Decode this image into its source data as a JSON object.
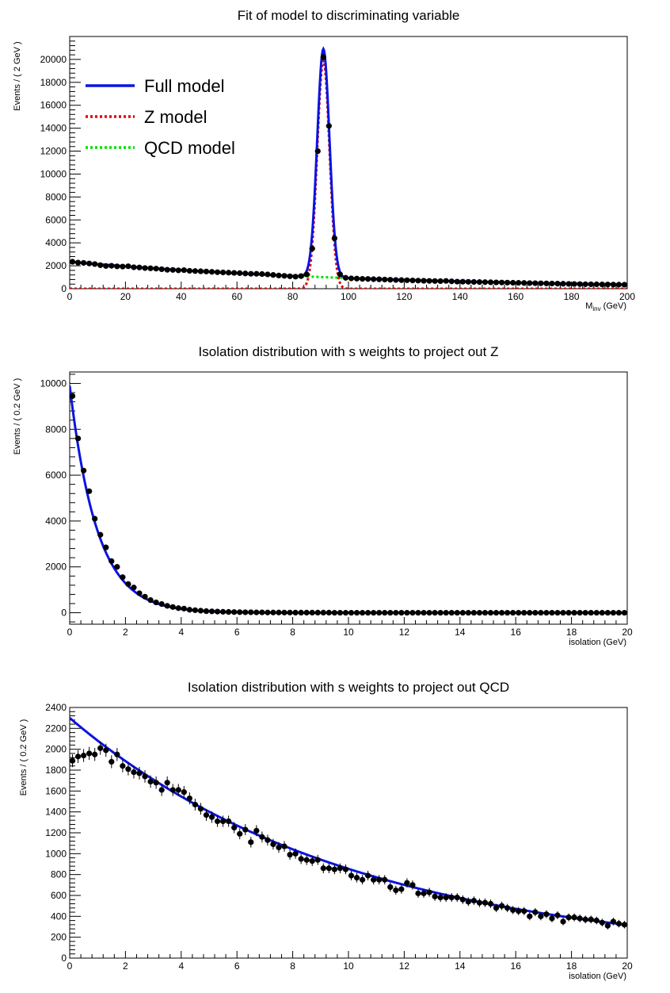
{
  "colors": {
    "full_model": "#0b14e0",
    "z_model": "#e00000",
    "qcd_model": "#00e000",
    "points": "#000000",
    "frame": "#000000"
  },
  "chart_data": [
    {
      "type": "scatter",
      "title": "Fit of model to discriminating variable",
      "xlabel": "M",
      "xlabel_sub": "inv",
      "xlabel_unit": " (GeV)",
      "ylabel": "Events / ( 2 GeV )",
      "xlim": [
        0,
        200
      ],
      "ylim": [
        0,
        22000
      ],
      "xticks": [
        0,
        20,
        40,
        60,
        80,
        100,
        120,
        140,
        160,
        180,
        200
      ],
      "yticks": [
        0,
        2000,
        4000,
        6000,
        8000,
        10000,
        12000,
        14000,
        16000,
        18000,
        20000
      ],
      "legend": {
        "position": "top-left",
        "entries": [
          {
            "label": "Full model",
            "style": "solid",
            "color": "#0b14e0"
          },
          {
            "label": "Z model",
            "style": "dotted",
            "color": "#e00000"
          },
          {
            "label": "QCD model",
            "style": "dotted",
            "color": "#00e000"
          }
        ]
      },
      "series": [
        {
          "name": "Data",
          "kind": "points",
          "x": [
            1,
            3,
            5,
            7,
            9,
            11,
            13,
            15,
            17,
            19,
            21,
            23,
            25,
            27,
            29,
            31,
            33,
            35,
            37,
            39,
            41,
            43,
            45,
            47,
            49,
            51,
            53,
            55,
            57,
            59,
            61,
            63,
            65,
            67,
            69,
            71,
            73,
            75,
            77,
            79,
            81,
            83,
            85,
            87,
            89,
            91,
            93,
            95,
            97,
            99,
            101,
            103,
            105,
            107,
            109,
            111,
            113,
            115,
            117,
            119,
            121,
            123,
            125,
            127,
            129,
            131,
            133,
            135,
            137,
            139,
            141,
            143,
            145,
            147,
            149,
            151,
            153,
            155,
            157,
            159,
            161,
            163,
            165,
            167,
            169,
            171,
            173,
            175,
            177,
            179,
            181,
            183,
            185,
            187,
            189,
            191,
            193,
            195,
            197,
            199
          ],
          "y": [
            2350,
            2280,
            2250,
            2200,
            2150,
            2050,
            1980,
            2000,
            1950,
            1930,
            1960,
            1870,
            1850,
            1800,
            1780,
            1750,
            1700,
            1650,
            1640,
            1600,
            1620,
            1560,
            1540,
            1520,
            1500,
            1470,
            1440,
            1420,
            1400,
            1380,
            1360,
            1330,
            1300,
            1300,
            1280,
            1250,
            1200,
            1150,
            1120,
            1080,
            1050,
            1100,
            1250,
            3500,
            12000,
            20200,
            14200,
            4400,
            1250,
            950,
            900,
            880,
            860,
            850,
            830,
            820,
            800,
            780,
            760,
            750,
            740,
            720,
            700,
            690,
            680,
            670,
            660,
            680,
            640,
            620,
            610,
            600,
            590,
            580,
            570,
            560,
            550,
            540,
            530,
            520,
            510,
            500,
            490,
            480,
            470,
            460,
            450,
            440,
            430,
            420,
            410,
            400,
            390,
            385,
            380,
            370,
            365,
            360,
            355,
            350
          ]
        },
        {
          "name": "Full model",
          "kind": "function",
          "model": "full",
          "params": {
            "bkg_a": 2350,
            "bkg_b": 0.0093,
            "peak_amp": 19900,
            "peak_mu": 91.0,
            "peak_sigma": 2.2
          }
        },
        {
          "name": "Z model",
          "kind": "function",
          "model": "z",
          "params": {
            "peak_amp": 19900,
            "peak_mu": 91.0,
            "peak_sigma": 2.2
          }
        },
        {
          "name": "QCD model",
          "kind": "function",
          "model": "qcd",
          "params": {
            "bkg_a": 2350,
            "bkg_b": 0.0093
          }
        }
      ]
    },
    {
      "type": "scatter",
      "title": "Isolation distribution with s weights to project out Z",
      "xlabel": "isolation (GeV)",
      "ylabel": "Events / ( 0.2 GeV )",
      "xlim": [
        0,
        20
      ],
      "ylim": [
        -500,
        10500
      ],
      "xticks": [
        0,
        2,
        4,
        6,
        8,
        10,
        12,
        14,
        16,
        18,
        20
      ],
      "yticks": [
        0,
        2000,
        4000,
        6000,
        8000,
        10000
      ],
      "series": [
        {
          "name": "Data",
          "kind": "points",
          "x": [
            0.1,
            0.3,
            0.5,
            0.7,
            0.9,
            1.1,
            1.3,
            1.5,
            1.7,
            1.9,
            2.1,
            2.3,
            2.5,
            2.7,
            2.9,
            3.1,
            3.3,
            3.5,
            3.7,
            3.9,
            4.1,
            4.3,
            4.5,
            4.7,
            4.9,
            5.1,
            5.3,
            5.5,
            5.7,
            5.9,
            6.1,
            6.3,
            6.5,
            6.7,
            6.9,
            7.1,
            7.3,
            7.5,
            7.7,
            7.9,
            8.1,
            8.3,
            8.5,
            8.7,
            8.9,
            9.1,
            9.3,
            9.5,
            9.7,
            9.9,
            10.1,
            10.3,
            10.5,
            10.7,
            10.9,
            11.1,
            11.3,
            11.5,
            11.7,
            11.9,
            12.1,
            12.3,
            12.5,
            12.7,
            12.9,
            13.1,
            13.3,
            13.5,
            13.7,
            13.9,
            14.1,
            14.3,
            14.5,
            14.7,
            14.9,
            15.1,
            15.3,
            15.5,
            15.7,
            15.9,
            16.1,
            16.3,
            16.5,
            16.7,
            16.9,
            17.1,
            17.3,
            17.5,
            17.7,
            17.9,
            18.1,
            18.3,
            18.5,
            18.7,
            18.9,
            19.1,
            19.3,
            19.5,
            19.7,
            19.9
          ],
          "y": [
            9450,
            7600,
            6200,
            5300,
            4100,
            3400,
            2850,
            2250,
            2000,
            1550,
            1250,
            1100,
            850,
            700,
            550,
            450,
            380,
            300,
            250,
            200,
            180,
            130,
            110,
            90,
            70,
            60,
            50,
            40,
            35,
            30,
            25,
            20,
            20,
            15,
            15,
            10,
            10,
            10,
            8,
            8,
            5,
            5,
            5,
            5,
            5,
            5,
            5,
            0,
            0,
            0,
            0,
            0,
            0,
            0,
            0,
            0,
            0,
            0,
            0,
            0,
            0,
            0,
            0,
            0,
            0,
            0,
            0,
            0,
            0,
            0,
            0,
            0,
            0,
            0,
            0,
            0,
            0,
            0,
            0,
            0,
            0,
            0,
            0,
            0,
            0,
            0,
            0,
            0,
            0,
            0,
            0,
            0,
            0,
            0,
            0,
            0,
            0,
            0,
            0,
            0
          ]
        },
        {
          "name": "Full model",
          "kind": "function",
          "model": "expo",
          "params": {
            "a": 9900,
            "b": 1.02
          }
        }
      ]
    },
    {
      "type": "scatter",
      "title": "Isolation distribution with s weights to project out QCD",
      "xlabel": "isolation (GeV)",
      "ylabel": "Events / ( 0.2 GeV )",
      "xlim": [
        0,
        20
      ],
      "ylim": [
        0,
        2400
      ],
      "xticks": [
        0,
        2,
        4,
        6,
        8,
        10,
        12,
        14,
        16,
        18,
        20
      ],
      "yticks": [
        0,
        200,
        400,
        600,
        800,
        1000,
        1200,
        1400,
        1600,
        1800,
        2000,
        2200,
        2400
      ],
      "series": [
        {
          "name": "Data",
          "kind": "points",
          "x": [
            0.1,
            0.3,
            0.5,
            0.7,
            0.9,
            1.1,
            1.3,
            1.5,
            1.7,
            1.9,
            2.1,
            2.3,
            2.5,
            2.7,
            2.9,
            3.1,
            3.3,
            3.5,
            3.7,
            3.9,
            4.1,
            4.3,
            4.5,
            4.7,
            4.9,
            5.1,
            5.3,
            5.5,
            5.7,
            5.9,
            6.1,
            6.3,
            6.5,
            6.7,
            6.9,
            7.1,
            7.3,
            7.5,
            7.7,
            7.9,
            8.1,
            8.3,
            8.5,
            8.7,
            8.9,
            9.1,
            9.3,
            9.5,
            9.7,
            9.9,
            10.1,
            10.3,
            10.5,
            10.7,
            10.9,
            11.1,
            11.3,
            11.5,
            11.7,
            11.9,
            12.1,
            12.3,
            12.5,
            12.7,
            12.9,
            13.1,
            13.3,
            13.5,
            13.7,
            13.9,
            14.1,
            14.3,
            14.5,
            14.7,
            14.9,
            15.1,
            15.3,
            15.5,
            15.7,
            15.9,
            16.1,
            16.3,
            16.5,
            16.7,
            16.9,
            17.1,
            17.3,
            17.5,
            17.7,
            17.9,
            18.1,
            18.3,
            18.5,
            18.7,
            18.9,
            19.1,
            19.3,
            19.5,
            19.7,
            19.9
          ],
          "y": [
            1890,
            1930,
            1940,
            1960,
            1950,
            2010,
            1990,
            1880,
            1950,
            1840,
            1810,
            1780,
            1770,
            1740,
            1690,
            1680,
            1610,
            1680,
            1610,
            1610,
            1590,
            1530,
            1470,
            1430,
            1370,
            1350,
            1310,
            1310,
            1310,
            1250,
            1190,
            1230,
            1110,
            1220,
            1160,
            1130,
            1090,
            1060,
            1070,
            990,
            1000,
            950,
            940,
            930,
            940,
            860,
            860,
            850,
            860,
            850,
            790,
            770,
            750,
            790,
            750,
            750,
            750,
            680,
            650,
            660,
            720,
            700,
            620,
            620,
            630,
            590,
            580,
            580,
            580,
            580,
            560,
            540,
            550,
            530,
            530,
            520,
            480,
            500,
            480,
            460,
            450,
            450,
            400,
            440,
            400,
            420,
            380,
            410,
            350,
            390,
            390,
            380,
            370,
            370,
            360,
            340,
            310,
            350,
            330,
            320
          ]
        },
        {
          "name": "Full model",
          "kind": "function",
          "model": "expo",
          "params": {
            "a": 2300,
            "b": 0.099
          }
        }
      ]
    }
  ]
}
